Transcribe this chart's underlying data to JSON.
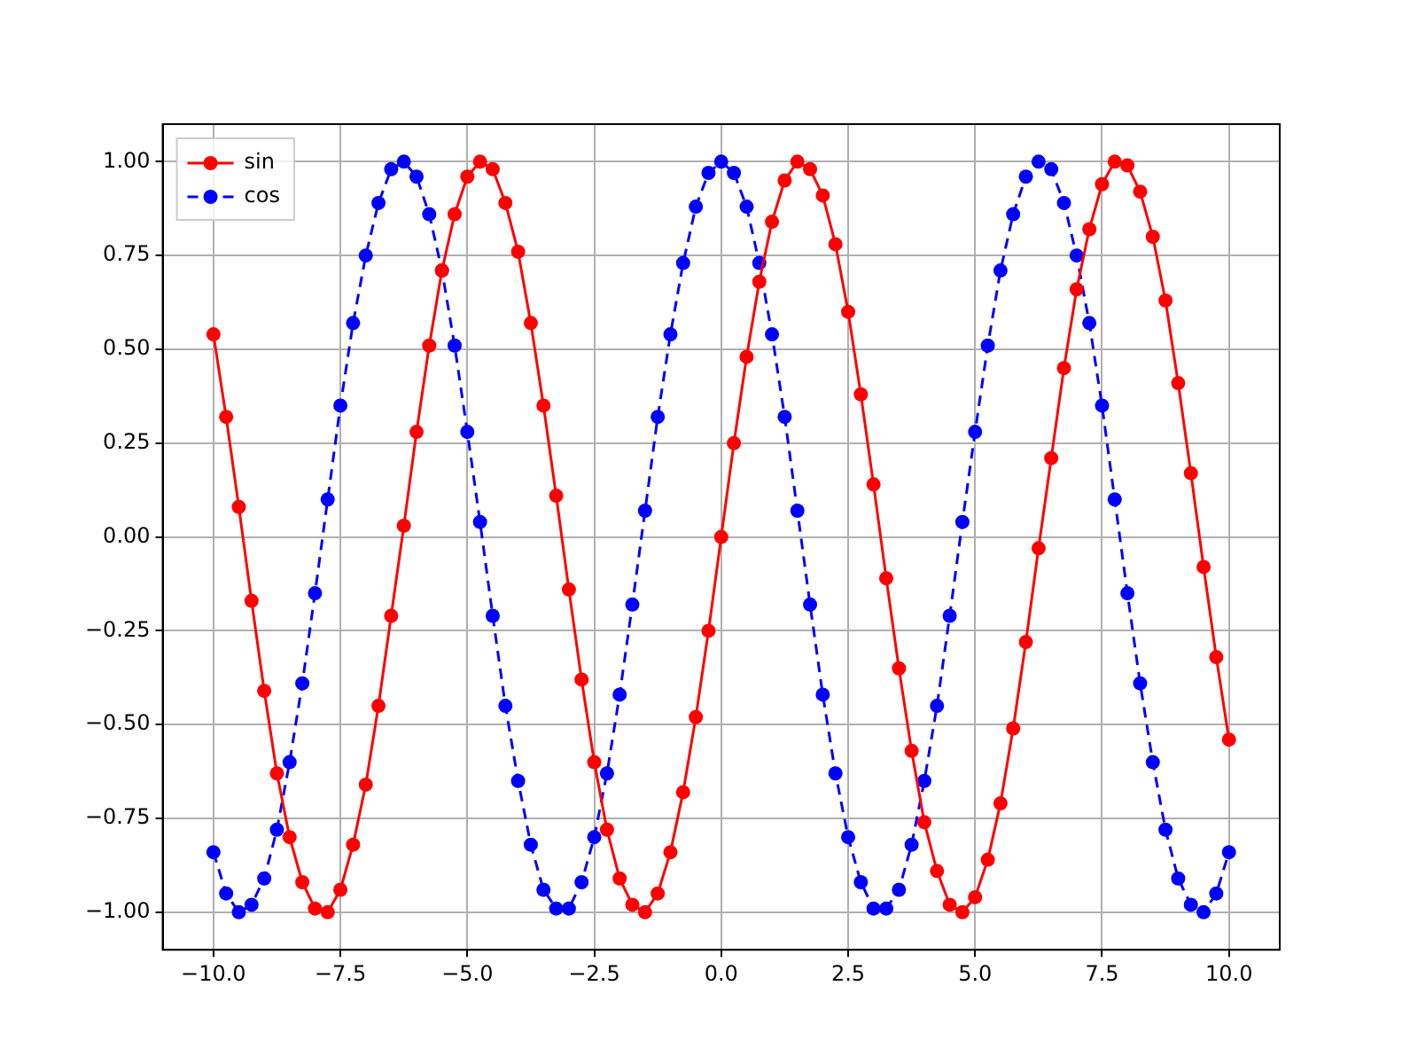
{
  "chart_data": {
    "type": "line",
    "x": [
      -10,
      -9.75,
      -9.5,
      -9.25,
      -9,
      -8.75,
      -8.5,
      -8.25,
      -8,
      -7.75,
      -7.5,
      -7.25,
      -7,
      -6.75,
      -6.5,
      -6.25,
      -6,
      -5.75,
      -5.5,
      -5.25,
      -5,
      -4.75,
      -4.5,
      -4.25,
      -4,
      -3.75,
      -3.5,
      -3.25,
      -3,
      -2.75,
      -2.5,
      -2.25,
      -2,
      -1.75,
      -1.5,
      -1.25,
      -1,
      -0.75,
      -0.5,
      -0.25,
      0,
      0.25,
      0.5,
      0.75,
      1,
      1.25,
      1.5,
      1.75,
      2,
      2.25,
      2.5,
      2.75,
      3,
      3.25,
      3.5,
      3.75,
      4,
      4.25,
      4.5,
      4.75,
      5,
      5.25,
      5.5,
      5.75,
      6,
      6.25,
      6.5,
      6.75,
      7,
      7.25,
      7.5,
      7.75,
      8,
      8.25,
      8.5,
      8.75,
      9,
      9.25,
      9.5,
      9.75,
      10
    ],
    "series": [
      {
        "name": "sin",
        "color": "#ff0000",
        "line_style": "solid",
        "values": [
          0.54,
          0.32,
          0.08,
          -0.17,
          -0.41,
          -0.63,
          -0.8,
          -0.92,
          -0.99,
          -1.0,
          -0.94,
          -0.82,
          -0.66,
          -0.45,
          -0.21,
          0.03,
          0.28,
          0.51,
          0.71,
          0.86,
          0.96,
          1.0,
          0.98,
          0.89,
          0.76,
          0.57,
          0.35,
          0.11,
          -0.14,
          -0.38,
          -0.6,
          -0.78,
          -0.91,
          -0.98,
          -1.0,
          -0.95,
          -0.84,
          -0.68,
          -0.48,
          -0.25,
          0,
          0.25,
          0.48,
          0.68,
          0.84,
          0.95,
          1.0,
          0.98,
          0.91,
          0.78,
          0.6,
          0.38,
          0.14,
          -0.11,
          -0.35,
          -0.57,
          -0.76,
          -0.89,
          -0.98,
          -1.0,
          -0.96,
          -0.86,
          -0.71,
          -0.51,
          -0.28,
          -0.03,
          0.21,
          0.45,
          0.66,
          0.82,
          0.94,
          1.0,
          0.99,
          0.92,
          0.8,
          0.63,
          0.41,
          0.17,
          -0.08,
          -0.32,
          -0.54
        ]
      },
      {
        "name": "cos",
        "color": "#0000ff",
        "line_style": "dashed",
        "values": [
          -0.84,
          -0.95,
          -1.0,
          -0.98,
          -0.91,
          -0.78,
          -0.6,
          -0.39,
          -0.15,
          0.1,
          0.35,
          0.57,
          0.75,
          0.89,
          0.98,
          1.0,
          0.96,
          0.86,
          0.71,
          0.51,
          0.28,
          0.04,
          -0.21,
          -0.45,
          -0.65,
          -0.82,
          -0.94,
          -0.99,
          -0.99,
          -0.92,
          -0.8,
          -0.63,
          -0.42,
          -0.18,
          0.07,
          0.32,
          0.54,
          0.73,
          0.88,
          0.97,
          1,
          0.97,
          0.88,
          0.73,
          0.54,
          0.32,
          0.07,
          -0.18,
          -0.42,
          -0.63,
          -0.8,
          -0.92,
          -0.99,
          -0.99,
          -0.94,
          -0.82,
          -0.65,
          -0.45,
          -0.21,
          0.04,
          0.28,
          0.51,
          0.71,
          0.86,
          0.96,
          1.0,
          0.98,
          0.89,
          0.75,
          0.57,
          0.35,
          0.1,
          -0.15,
          -0.39,
          -0.6,
          -0.78,
          -0.91,
          -0.98,
          -1.0,
          -0.95,
          -0.84
        ]
      }
    ],
    "xlim": [
      -11,
      11
    ],
    "xticks": [
      {
        "value": -10,
        "label": "−10.0"
      },
      {
        "value": -7.5,
        "label": "−7.5"
      },
      {
        "value": -5,
        "label": "−5.0"
      },
      {
        "value": -2.5,
        "label": "−2.5"
      },
      {
        "value": 0,
        "label": "0.0"
      },
      {
        "value": 2.5,
        "label": "2.5"
      },
      {
        "value": 5,
        "label": "5.0"
      },
      {
        "value": 7.5,
        "label": "7.5"
      },
      {
        "value": 10,
        "label": "10.0"
      }
    ],
    "ylim": [
      -1.1,
      1.1
    ],
    "yticks": [
      {
        "value": -1,
        "label": "−1.00"
      },
      {
        "value": -0.75,
        "label": "−0.75"
      },
      {
        "value": -0.5,
        "label": "−0.50"
      },
      {
        "value": -0.25,
        "label": "−0.25"
      },
      {
        "value": 0,
        "label": "0.00"
      },
      {
        "value": 0.25,
        "label": "0.25"
      },
      {
        "value": 0.5,
        "label": "0.50"
      },
      {
        "value": 0.75,
        "label": "0.75"
      },
      {
        "value": 1,
        "label": "1.00"
      }
    ],
    "grid": true,
    "legend": "top left",
    "marker": "circle"
  }
}
